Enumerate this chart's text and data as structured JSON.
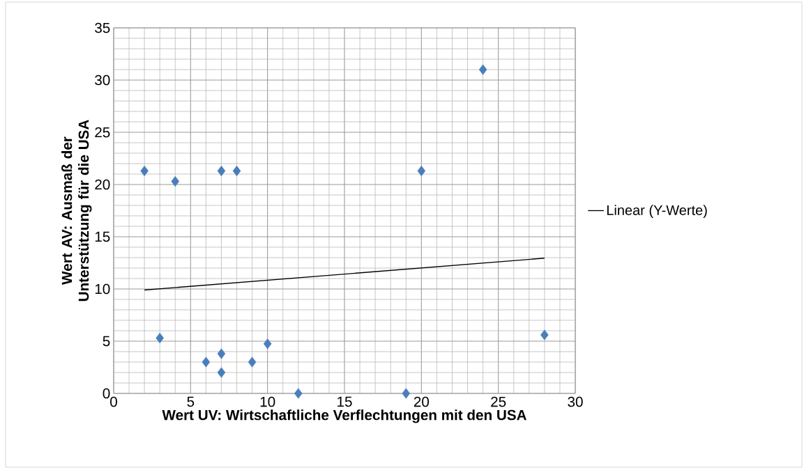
{
  "chart_data": {
    "type": "scatter",
    "xlabel": "Wert UV: Wirtschaftliche Verflechtungen mit den USA",
    "ylabel": "Wert AV: Ausmaß der Unterstützung für die USA",
    "xlim": [
      0,
      30
    ],
    "ylim": [
      0,
      35
    ],
    "xticks": [
      0,
      5,
      10,
      15,
      20,
      25,
      30
    ],
    "yticks": [
      0,
      5,
      10,
      15,
      20,
      25,
      30,
      35
    ],
    "grid": true,
    "legend": "right",
    "series": [
      {
        "color": "#4a7ebb",
        "marker": "diamond",
        "x": [
          2,
          3,
          4,
          6,
          7,
          7,
          7,
          8,
          9,
          10,
          12,
          19,
          20,
          24,
          28
        ],
        "values": [
          21.3,
          5.3,
          20.3,
          3,
          21.3,
          3.8,
          2,
          21.3,
          3,
          4.75,
          0,
          0,
          21.3,
          31,
          5.6
        ]
      },
      {
        "type": "line",
        "name": "Linear (Y-Werte)",
        "color": "#000000",
        "marker": "none",
        "line_style": "solid",
        "x": [
          2,
          28
        ],
        "values": [
          9.9,
          12.95
        ]
      }
    ]
  }
}
